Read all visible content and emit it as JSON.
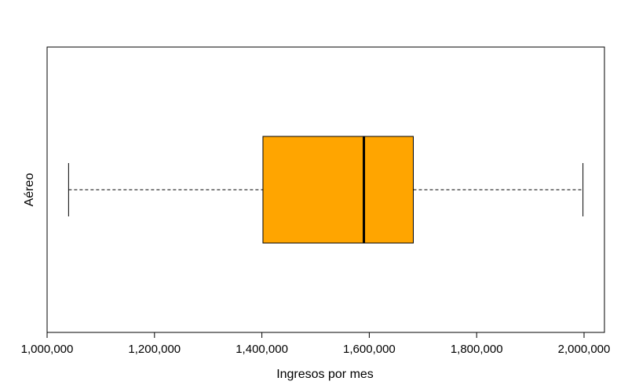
{
  "chart_data": {
    "type": "boxplot",
    "orientation": "horizontal",
    "title": "",
    "xlabel": "Ingresos por mes",
    "ylabel": "",
    "category_label": "Aéreo",
    "xlim": [
      1000000,
      2030000
    ],
    "xticks": [
      1000000,
      1200000,
      1400000,
      1600000,
      1800000,
      2000000
    ],
    "xtick_labels": [
      "1,000,000",
      "1,200,000",
      "1,400,000",
      "1,600,000",
      "1,800,000",
      "2,000,000"
    ],
    "box": {
      "min": 1040000,
      "q1": 1402000,
      "median": 1590000,
      "q3": 1682000,
      "max": 1998000
    },
    "grid": false,
    "legend": "none",
    "colors": {
      "box_fill": "#FFA500",
      "stroke": "#000000"
    }
  }
}
